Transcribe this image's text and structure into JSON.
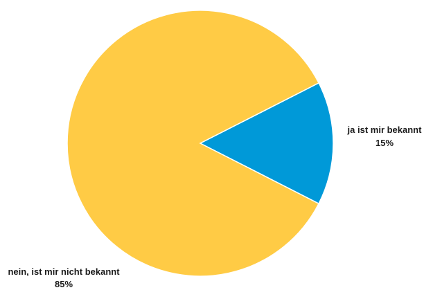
{
  "chart_data": {
    "type": "pie",
    "title": "",
    "slices": [
      {
        "label": "ja ist mir bekannt",
        "value": 15,
        "value_label": "15%",
        "color": "#0099d8"
      },
      {
        "label": "nein, ist mir nicht bekannt",
        "value": 85,
        "value_label": "85%",
        "color": "#ffcb45"
      }
    ],
    "legend": "none"
  }
}
